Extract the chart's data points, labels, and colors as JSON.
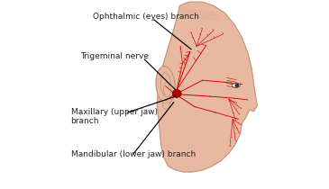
{
  "bg_color": "#ffffff",
  "skin_color": "#e8b8a0",
  "skin_dark": "#d4957a",
  "skin_light": "#f0c8b0",
  "nerve_color": "#cc0000",
  "ganglion_color": "#aa0000",
  "outline_color": "#c0907a",
  "label_color": "#222222",
  "line_color": "#000000",
  "labels": {
    "ophthalmic": "Ophthalmic (eyes) branch",
    "trigeminal": "Trigeminal nerve",
    "maxillary": "Maxillary (upper jaw)\nbranch",
    "mandibular": "Mandibular (lower jaw) branch"
  }
}
